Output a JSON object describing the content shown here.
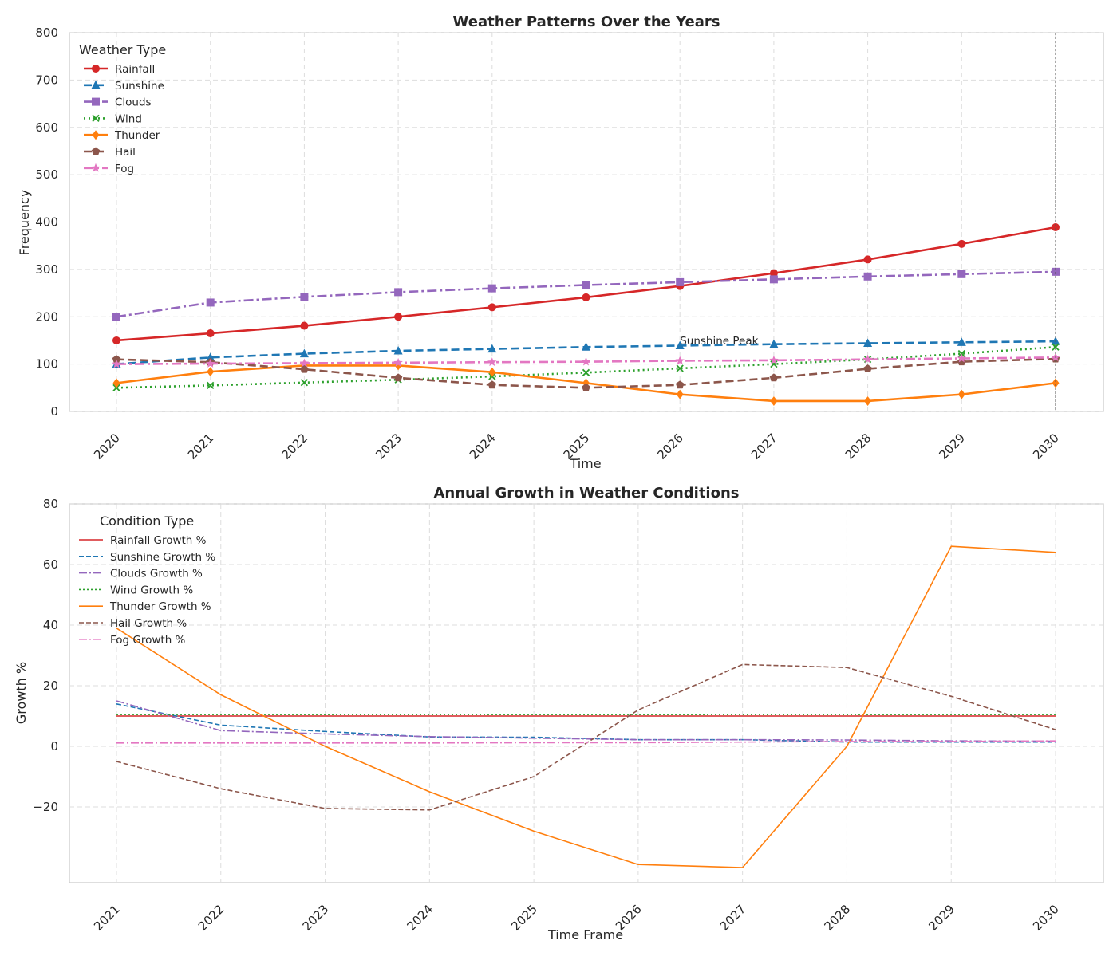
{
  "chart_data": [
    {
      "type": "line",
      "title": "Weather Patterns Over the Years",
      "xlabel": "Time",
      "ylabel": "Frequency",
      "ylim": [
        0,
        800
      ],
      "yticks": [
        "0",
        "100",
        "200",
        "300",
        "400",
        "500",
        "600",
        "700",
        "800"
      ],
      "x": [
        "2020",
        "2021",
        "2022",
        "2023",
        "2024",
        "2025",
        "2026",
        "2027",
        "2028",
        "2029",
        "2030"
      ],
      "grid": true,
      "legend_title": "Weather Type",
      "legend_position": "top-left",
      "series": [
        {
          "name": "Rainfall",
          "color": "#d62728",
          "dash": "",
          "marker": "circle",
          "values": [
            150,
            165,
            181,
            200,
            220,
            241,
            265,
            292,
            321,
            354,
            389
          ]
        },
        {
          "name": "Sunshine",
          "color": "#1f77b4",
          "dash": "10,5",
          "marker": "triangle",
          "values": [
            100,
            114,
            122,
            128,
            132,
            136,
            139,
            142,
            144,
            146,
            148
          ]
        },
        {
          "name": "Clouds",
          "color": "#9467bd",
          "dash": "12,4,3,4",
          "marker": "square",
          "values": [
            200,
            230,
            242,
            252,
            260,
            267,
            273,
            279,
            285,
            290,
            295
          ]
        },
        {
          "name": "Wind",
          "color": "#2ca02c",
          "dash": "2,4",
          "marker": "x",
          "values": [
            50,
            55,
            61,
            67,
            74,
            82,
            91,
            100,
            110,
            122,
            136
          ]
        },
        {
          "name": "Thunder",
          "color": "#ff7f0e",
          "dash": "",
          "marker": "diamond",
          "values": [
            60,
            84,
            97,
            97,
            83,
            60,
            36,
            22,
            22,
            36,
            60
          ]
        },
        {
          "name": "Hail",
          "color": "#8c564b",
          "dash": "10,5",
          "marker": "pentagon",
          "values": [
            110,
            104,
            89,
            71,
            56,
            50,
            56,
            71,
            90,
            105,
            111
          ]
        },
        {
          "name": "Fog",
          "color": "#e377c2",
          "dash": "12,4,3,4",
          "marker": "star",
          "values": [
            100,
            101,
            102,
            103,
            104,
            105,
            107,
            108,
            110,
            112,
            114
          ]
        }
      ],
      "annotations": [
        {
          "text": "Sunshine Peak",
          "x": "2026",
          "y": 150
        }
      ],
      "vline": {
        "x": "2030"
      }
    },
    {
      "type": "line",
      "title": "Annual Growth in Weather Conditions",
      "xlabel": "Time Frame",
      "ylabel": "Growth %",
      "ylim": [
        -45,
        80
      ],
      "yticks": [
        "−20",
        "0",
        "20",
        "40",
        "60",
        "80"
      ],
      "ytick_values": [
        -20,
        0,
        20,
        40,
        60,
        80
      ],
      "x": [
        "2021",
        "2022",
        "2023",
        "2024",
        "2025",
        "2026",
        "2027",
        "2028",
        "2029",
        "2030"
      ],
      "grid": true,
      "legend_title": "Condition Type",
      "legend_position": "top-left",
      "series": [
        {
          "name": "Rainfall Growth %",
          "color": "#d62728",
          "dash": "",
          "values": [
            10,
            10,
            10,
            10,
            10,
            10,
            10,
            10,
            10,
            10
          ]
        },
        {
          "name": "Sunshine Growth %",
          "color": "#1f77b4",
          "dash": "6,3",
          "values": [
            14,
            7,
            4.9,
            3.1,
            3.0,
            2.2,
            2.2,
            1.4,
            1.4,
            1.4
          ]
        },
        {
          "name": "Clouds Growth %",
          "color": "#9467bd",
          "dash": "10,3,2,3",
          "values": [
            15,
            5.2,
            4.1,
            3.2,
            2.7,
            2.2,
            2.2,
            2.1,
            1.8,
            1.7
          ]
        },
        {
          "name": "Wind Growth %",
          "color": "#2ca02c",
          "dash": "2,3",
          "values": [
            10.5,
            10.5,
            10.5,
            10.5,
            10.5,
            10.5,
            10.5,
            10.5,
            10.5,
            10.5
          ]
        },
        {
          "name": "Thunder Growth %",
          "color": "#ff7f0e",
          "dash": "",
          "values": [
            39,
            17,
            0,
            -15,
            -28,
            -39,
            -40,
            0,
            66,
            64
          ]
        },
        {
          "name": "Hail Growth %",
          "color": "#8c564b",
          "dash": "6,3",
          "values": [
            -5,
            -14,
            -20.5,
            -21,
            -10,
            12,
            27,
            26,
            16.5,
            5.5
          ]
        },
        {
          "name": "Fog Growth %",
          "color": "#e377c2",
          "dash": "10,3,2,3",
          "values": [
            1.1,
            1.1,
            1.1,
            1.1,
            1.2,
            1.2,
            1.4,
            1.6,
            1.6,
            1.8
          ]
        }
      ]
    }
  ]
}
